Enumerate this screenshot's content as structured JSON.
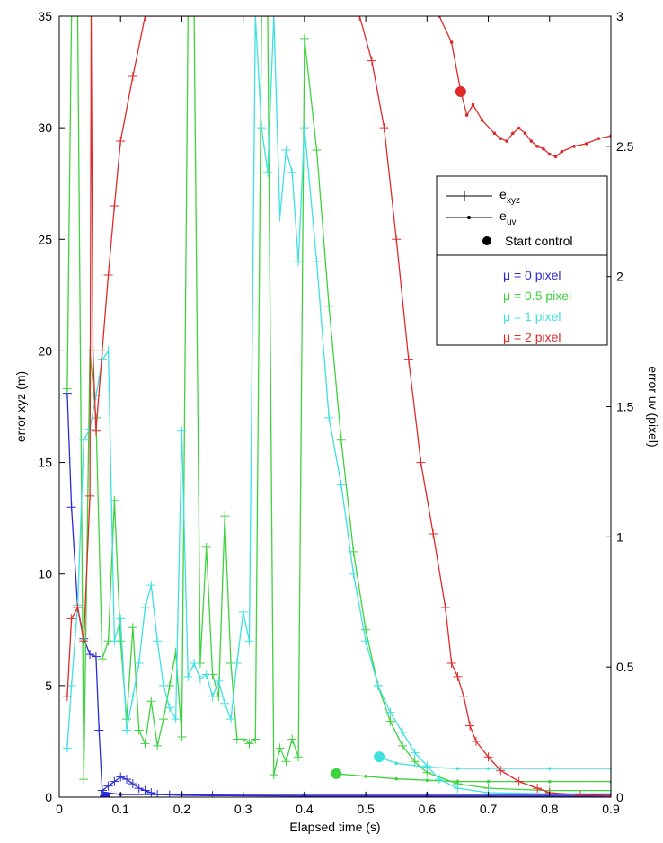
{
  "chart_data": {
    "type": "line",
    "xlabel": "Elapsed time (s)",
    "ylabel_left": "error xyz (m)",
    "ylabel_right": "error uv (pixel)",
    "xlim": [
      0,
      0.9
    ],
    "ylim_left": [
      0,
      35
    ],
    "ylim_right": [
      0,
      3
    ],
    "x_ticks": [
      "0",
      "0.1",
      "0.2",
      "0.3",
      "0.4",
      "0.5",
      "0.6",
      "0.7",
      "0.8",
      "0.9"
    ],
    "y_left_ticks": [
      "0",
      "5",
      "10",
      "15",
      "20",
      "25",
      "30",
      "35"
    ],
    "y_right_ticks": [
      "0",
      "0.5",
      "1",
      "1.5",
      "2",
      "2.5",
      "3"
    ],
    "legend": {
      "placement": "right",
      "style_entries": [
        {
          "base": "e",
          "sub": "xyz",
          "marker": "plus"
        },
        {
          "base": "e",
          "sub": "uv",
          "marker": "dot"
        },
        {
          "label": "Start control",
          "marker": "bigdot"
        }
      ],
      "color_entries": [
        {
          "label": "μ = 0 pixel",
          "color": "#2a2ad6"
        },
        {
          "label": "μ = 0.5 pixel",
          "color": "#3ed23e"
        },
        {
          "label": "μ = 1 pixel",
          "color": "#3ee0e0"
        },
        {
          "label": "μ = 2 pixel",
          "color": "#e02a2a"
        }
      ]
    },
    "series": [
      {
        "name": "μ = 0 pixel",
        "color": "#2a2ad6",
        "exyz": [
          [
            0.013,
            18.1
          ],
          [
            0.02,
            13
          ],
          [
            0.03,
            8.5
          ],
          [
            0.04,
            7.1
          ],
          [
            0.05,
            6.4
          ],
          [
            0.06,
            6.3
          ],
          [
            0.065,
            3
          ],
          [
            0.07,
            0.3
          ],
          [
            0.08,
            0.5
          ],
          [
            0.09,
            0.7
          ],
          [
            0.1,
            0.9
          ],
          [
            0.11,
            0.8
          ],
          [
            0.12,
            0.6
          ],
          [
            0.13,
            0.4
          ],
          [
            0.14,
            0.3
          ],
          [
            0.15,
            0.2
          ],
          [
            0.16,
            0.12
          ],
          [
            0.18,
            0.1
          ],
          [
            0.2,
            0.08
          ],
          [
            0.25,
            0.07
          ],
          [
            0.3,
            0.06
          ],
          [
            0.4,
            0.05
          ],
          [
            0.5,
            0.05
          ],
          [
            0.6,
            0.05
          ],
          [
            0.7,
            0.05
          ],
          [
            0.8,
            0.05
          ],
          [
            0.9,
            0.05
          ]
        ],
        "euv": [
          [
            0.07,
            0.02
          ],
          [
            0.1,
            0.01
          ],
          [
            0.2,
            0.01
          ],
          [
            0.4,
            0.01
          ],
          [
            0.6,
            0.01
          ],
          [
            0.9,
            0.01
          ]
        ],
        "start": {
          "x": 0.075,
          "y_uv": 0.0
        }
      },
      {
        "name": "μ = 0.5 pixel",
        "color": "#3ed23e",
        "exyz": [
          [
            0.013,
            18.3
          ],
          [
            0.02,
            35
          ],
          [
            0.03,
            35
          ],
          [
            0.04,
            0.8
          ],
          [
            0.05,
            20
          ],
          [
            0.06,
            17
          ],
          [
            0.07,
            6.2
          ],
          [
            0.08,
            7
          ],
          [
            0.09,
            13.3
          ],
          [
            0.1,
            7
          ],
          [
            0.11,
            3.5
          ],
          [
            0.12,
            7.6
          ],
          [
            0.13,
            3
          ],
          [
            0.14,
            2.4
          ],
          [
            0.15,
            4.3
          ],
          [
            0.16,
            2.3
          ],
          [
            0.17,
            3.5
          ],
          [
            0.18,
            5
          ],
          [
            0.19,
            6.5
          ],
          [
            0.2,
            2.7
          ],
          [
            0.21,
            35
          ],
          [
            0.22,
            35
          ],
          [
            0.23,
            6
          ],
          [
            0.24,
            11.2
          ],
          [
            0.25,
            5.5
          ],
          [
            0.26,
            4.5
          ],
          [
            0.27,
            12.6
          ],
          [
            0.28,
            6
          ],
          [
            0.29,
            2.6
          ],
          [
            0.3,
            2.6
          ],
          [
            0.31,
            2.4
          ],
          [
            0.32,
            2.6
          ],
          [
            0.33,
            35
          ],
          [
            0.34,
            35
          ],
          [
            0.35,
            1
          ],
          [
            0.36,
            2.2
          ],
          [
            0.37,
            1.6
          ],
          [
            0.38,
            2.6
          ],
          [
            0.39,
            1.8
          ],
          [
            0.4,
            34
          ],
          [
            0.42,
            29
          ],
          [
            0.44,
            22
          ],
          [
            0.46,
            16
          ],
          [
            0.48,
            11
          ],
          [
            0.5,
            7.5
          ],
          [
            0.52,
            5
          ],
          [
            0.54,
            3.4
          ],
          [
            0.56,
            2.3
          ],
          [
            0.58,
            1.6
          ],
          [
            0.6,
            1.1
          ],
          [
            0.65,
            0.6
          ],
          [
            0.7,
            0.4
          ],
          [
            0.8,
            0.3
          ],
          [
            0.9,
            0.3
          ]
        ],
        "euv": [
          [
            0.45,
            0.09
          ],
          [
            0.5,
            0.08
          ],
          [
            0.55,
            0.07
          ],
          [
            0.6,
            0.065
          ],
          [
            0.65,
            0.06
          ],
          [
            0.7,
            0.06
          ],
          [
            0.8,
            0.06
          ],
          [
            0.9,
            0.06
          ]
        ],
        "start": {
          "x": 0.452,
          "y_uv": 0.09
        }
      },
      {
        "name": "μ = 1 pixel",
        "color": "#3ee0e0",
        "exyz": [
          [
            0.013,
            2.2
          ],
          [
            0.02,
            5
          ],
          [
            0.03,
            8.6
          ],
          [
            0.04,
            16
          ],
          [
            0.05,
            16.5
          ],
          [
            0.06,
            18
          ],
          [
            0.07,
            19.6
          ],
          [
            0.08,
            20
          ],
          [
            0.09,
            7
          ],
          [
            0.1,
            8
          ],
          [
            0.11,
            3
          ],
          [
            0.12,
            4.5
          ],
          [
            0.13,
            6
          ],
          [
            0.14,
            8.5
          ],
          [
            0.15,
            9.5
          ],
          [
            0.16,
            7
          ],
          [
            0.17,
            5
          ],
          [
            0.18,
            4
          ],
          [
            0.19,
            3.5
          ],
          [
            0.2,
            16.4
          ],
          [
            0.21,
            5.4
          ],
          [
            0.22,
            6
          ],
          [
            0.23,
            5.3
          ],
          [
            0.24,
            5.5
          ],
          [
            0.25,
            4.5
          ],
          [
            0.26,
            5.2
          ],
          [
            0.27,
            4.2
          ],
          [
            0.28,
            3.5
          ],
          [
            0.29,
            6
          ],
          [
            0.3,
            8.3
          ],
          [
            0.31,
            7
          ],
          [
            0.32,
            35
          ],
          [
            0.33,
            30
          ],
          [
            0.34,
            28
          ],
          [
            0.35,
            35
          ],
          [
            0.36,
            26
          ],
          [
            0.37,
            29
          ],
          [
            0.38,
            28
          ],
          [
            0.39,
            24
          ],
          [
            0.4,
            30
          ],
          [
            0.42,
            24
          ],
          [
            0.44,
            17
          ],
          [
            0.46,
            14
          ],
          [
            0.48,
            10
          ],
          [
            0.5,
            7
          ],
          [
            0.52,
            5
          ],
          [
            0.54,
            3.8
          ],
          [
            0.56,
            2.9
          ],
          [
            0.58,
            2
          ],
          [
            0.6,
            1.4
          ],
          [
            0.62,
            0.8
          ],
          [
            0.65,
            0.4
          ],
          [
            0.7,
            0.2
          ],
          [
            0.8,
            0.15
          ],
          [
            0.9,
            0.15
          ]
        ],
        "euv": [
          [
            0.52,
            0.155
          ],
          [
            0.55,
            0.13
          ],
          [
            0.6,
            0.115
          ],
          [
            0.65,
            0.11
          ],
          [
            0.7,
            0.11
          ],
          [
            0.8,
            0.11
          ],
          [
            0.9,
            0.11
          ]
        ],
        "start": {
          "x": 0.522,
          "y_uv": 0.155
        }
      },
      {
        "name": "μ = 2 pixel",
        "color": "#e02a2a",
        "exyz": [
          [
            0.013,
            4.5
          ],
          [
            0.02,
            8
          ],
          [
            0.03,
            8.5
          ],
          [
            0.04,
            7
          ],
          [
            0.05,
            13.5
          ],
          [
            0.052,
            35
          ],
          [
            0.055,
            20
          ],
          [
            0.06,
            16.4
          ],
          [
            0.07,
            20
          ],
          [
            0.08,
            23.4
          ],
          [
            0.09,
            26.5
          ],
          [
            0.1,
            29.4
          ],
          [
            0.12,
            32.3
          ],
          [
            0.14,
            35
          ],
          [
            0.49,
            35
          ],
          [
            0.51,
            33
          ],
          [
            0.53,
            30
          ],
          [
            0.55,
            25
          ],
          [
            0.57,
            19.6
          ],
          [
            0.59,
            15
          ],
          [
            0.61,
            11.8
          ],
          [
            0.63,
            8.5
          ],
          [
            0.64,
            6
          ],
          [
            0.65,
            5.4
          ],
          [
            0.66,
            4.5
          ],
          [
            0.67,
            3.2
          ],
          [
            0.68,
            2.5
          ],
          [
            0.7,
            1.8
          ],
          [
            0.72,
            1.2
          ],
          [
            0.75,
            0.7
          ],
          [
            0.78,
            0.4
          ],
          [
            0.8,
            0.2
          ],
          [
            0.85,
            0.1
          ],
          [
            0.9,
            0.05
          ]
        ],
        "euv": [
          [
            0.62,
            3.0
          ],
          [
            0.64,
            2.9
          ],
          [
            0.655,
            2.71
          ],
          [
            0.665,
            2.62
          ],
          [
            0.675,
            2.66
          ],
          [
            0.69,
            2.6
          ],
          [
            0.71,
            2.55
          ],
          [
            0.72,
            2.53
          ],
          [
            0.73,
            2.52
          ],
          [
            0.74,
            2.55
          ],
          [
            0.75,
            2.57
          ],
          [
            0.76,
            2.55
          ],
          [
            0.77,
            2.52
          ],
          [
            0.78,
            2.5
          ],
          [
            0.79,
            2.49
          ],
          [
            0.8,
            2.47
          ],
          [
            0.81,
            2.46
          ],
          [
            0.82,
            2.48
          ],
          [
            0.84,
            2.5
          ],
          [
            0.86,
            2.51
          ],
          [
            0.88,
            2.53
          ],
          [
            0.9,
            2.54
          ]
        ],
        "start": {
          "x": 0.655,
          "y_uv": 2.71
        }
      }
    ]
  }
}
